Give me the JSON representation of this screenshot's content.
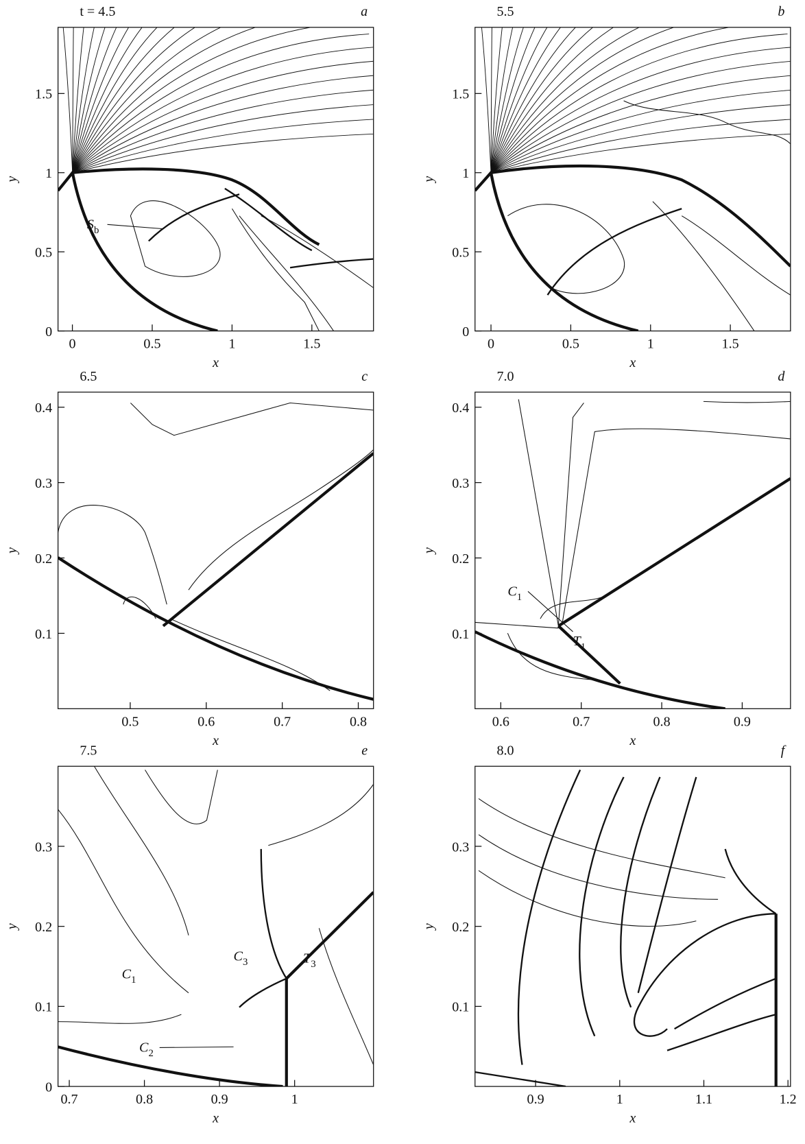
{
  "chart_data": [
    {
      "type": "contour",
      "panel": "a",
      "time_label": "t = 4.5",
      "x_label": "x",
      "y_label": "y",
      "xlim": [
        -0.09,
        1.886
      ],
      "ylim": [
        0,
        1.918
      ],
      "xticks": [
        0,
        0.5,
        1,
        1.5
      ],
      "yticks": [
        0,
        0.5,
        1,
        1.5
      ],
      "annotations": [
        {
          "main": "S",
          "sub": "b"
        }
      ]
    },
    {
      "type": "contour",
      "panel": "b",
      "time_label": "5.5",
      "x_label": "x",
      "y_label": "y",
      "xlim": [
        -0.1,
        1.877
      ],
      "ylim": [
        0,
        1.918
      ],
      "xticks": [
        0,
        0.5,
        1,
        1.5
      ],
      "yticks": [
        0,
        0.5,
        1,
        1.5
      ],
      "annotations": []
    },
    {
      "type": "contour",
      "panel": "c",
      "time_label": "6.5",
      "x_label": "x",
      "y_label": "y",
      "xlim": [
        0.405,
        0.82
      ],
      "ylim": [
        0,
        0.42
      ],
      "xticks": [
        0.5,
        0.6,
        0.7,
        0.8
      ],
      "yticks": [
        0.1,
        0.2,
        0.3,
        0.4
      ],
      "annotations": []
    },
    {
      "type": "contour",
      "panel": "d",
      "time_label": "7.0",
      "x_label": "x",
      "y_label": "y",
      "xlim": [
        0.568,
        0.96
      ],
      "ylim": [
        0,
        0.42
      ],
      "xticks": [
        0.6,
        0.7,
        0.8,
        0.9
      ],
      "yticks": [
        0.1,
        0.2,
        0.3,
        0.4
      ],
      "annotations": [
        {
          "main": "C",
          "sub": "1"
        },
        {
          "main": "T",
          "sub": "1"
        }
      ]
    },
    {
      "type": "contour",
      "panel": "e",
      "time_label": "7.5",
      "x_label": "x",
      "y_label": "y",
      "xlim": [
        0.685,
        1.105
      ],
      "ylim": [
        0,
        0.4
      ],
      "xticks": [
        0.7,
        0.8,
        0.9,
        1
      ],
      "yticks": [
        0,
        0.1,
        0.2,
        0.3
      ],
      "annotations": [
        {
          "main": "C",
          "sub": "1"
        },
        {
          "main": "C",
          "sub": "3"
        },
        {
          "main": "C",
          "sub": "2"
        },
        {
          "main": "T",
          "sub": "3"
        }
      ]
    },
    {
      "type": "contour",
      "panel": "f",
      "time_label": "8.0",
      "x_label": "x",
      "y_label": "y",
      "xlim": [
        0.828,
        1.203
      ],
      "ylim": [
        0,
        0.4
      ],
      "xticks": [
        0.9,
        1,
        1.1,
        1.2
      ],
      "yticks": [
        0.1,
        0.2,
        0.3
      ],
      "annotations": []
    }
  ]
}
